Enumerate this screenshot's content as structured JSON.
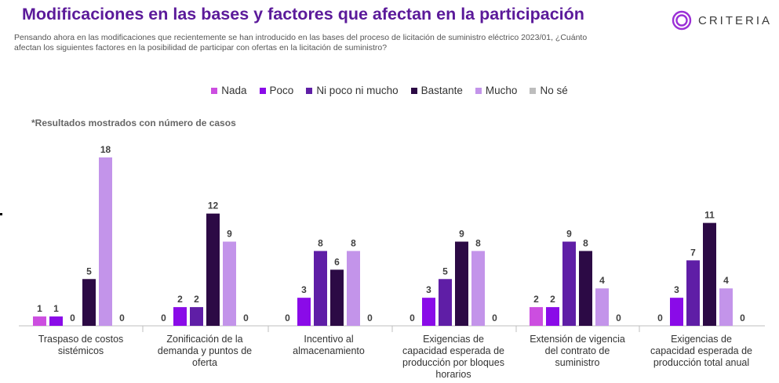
{
  "header": {
    "title": "Modificaciones en las bases y factores que afectan en la participación",
    "subtitle_line1": "Pensando ahora en las modificaciones que recientemente se han introducido en las bases del proceso de licitación de suministro eléctrico 2023/01, ¿Cuánto",
    "subtitle_line2": "afectan los siguientes factores en la posibilidad de participar con ofertas en la licitación de suministro?"
  },
  "brand": {
    "name": "CRITERIA",
    "logo_icon": "concentric-circles-logo-icon",
    "color": "#9b2fd6"
  },
  "note": "*Resultados mostrados con número de casos",
  "colors": {
    "Nada": "#cc4ee0",
    "Poco": "#8a0be8",
    "Ni poco ni mucho": "#5f1ea6",
    "Bastante": "#2c0a45",
    "Mucho": "#c394ea",
    "No sé": "#bdbdbd"
  },
  "chart_data": {
    "type": "bar",
    "categories": [
      [
        "Traspaso de costos",
        "sistémicos"
      ],
      [
        "Zonificación de la",
        "demanda y puntos de",
        "oferta"
      ],
      [
        "Incentivo al",
        "almacenamiento"
      ],
      [
        "Exigencias de",
        "capacidad esperada de",
        "producción por bloques",
        "horarios"
      ],
      [
        "Extensión de vigencia",
        "del contrato de",
        "suministro"
      ],
      [
        "Exigencias de",
        "capacidad esperada de",
        "producción total anual"
      ]
    ],
    "series": [
      {
        "name": "Nada",
        "values": [
          1,
          0,
          0,
          0,
          2,
          0
        ]
      },
      {
        "name": "Poco",
        "values": [
          1,
          2,
          3,
          3,
          2,
          3
        ]
      },
      {
        "name": "Ni poco ni mucho",
        "values": [
          0,
          2,
          8,
          5,
          9,
          7
        ]
      },
      {
        "name": "Bastante",
        "values": [
          5,
          12,
          6,
          9,
          8,
          11
        ]
      },
      {
        "name": "Mucho",
        "values": [
          18,
          9,
          8,
          8,
          4,
          4
        ]
      },
      {
        "name": "No sé",
        "values": [
          0,
          0,
          0,
          0,
          0,
          0
        ]
      }
    ],
    "ylim": [
      0,
      18
    ],
    "legend_position": "top-center",
    "data_labels": true,
    "grid": false
  }
}
